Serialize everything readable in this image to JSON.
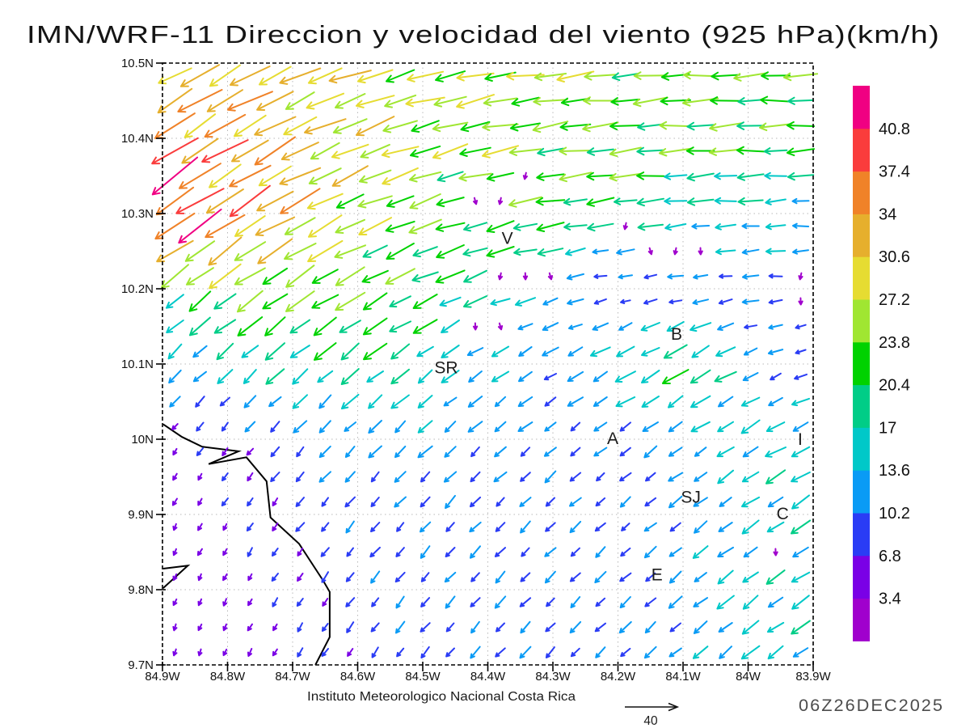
{
  "title": "IMN/WRF-11 Direccion y velocidad del viento (925 hPa)(km/h)",
  "footer": {
    "institute": "Instituto Meteorologico Nacional Costa Rica",
    "ref_value": "40",
    "datetime": "06Z26DEC2025"
  },
  "chart_data": {
    "type": "vector-field",
    "units": "km/h",
    "level": "925 hPa",
    "lon_range": [
      -84.9,
      -83.9
    ],
    "lat_range": [
      9.7,
      10.5
    ],
    "grid_interval_deg": 0.1,
    "x_axis": {
      "ticks": [
        {
          "label": "84.9W",
          "lon": -84.9
        },
        {
          "label": "84.8W",
          "lon": -84.8
        },
        {
          "label": "84.7W",
          "lon": -84.7
        },
        {
          "label": "84.6W",
          "lon": -84.6
        },
        {
          "label": "84.5W",
          "lon": -84.5
        },
        {
          "label": "84.4W",
          "lon": -84.4
        },
        {
          "label": "84.3W",
          "lon": -84.3
        },
        {
          "label": "84.2W",
          "lon": -84.2
        },
        {
          "label": "84.1W",
          "lon": -84.1
        },
        {
          "label": "84W",
          "lon": -84.0
        },
        {
          "label": "83.9W",
          "lon": -83.9
        }
      ]
    },
    "y_axis": {
      "ticks": [
        {
          "label": "9.7N",
          "lat": 9.7
        },
        {
          "label": "9.8N",
          "lat": 9.8
        },
        {
          "label": "9.9N",
          "lat": 9.9
        },
        {
          "label": "10N",
          "lat": 10.0
        },
        {
          "label": "10.1N",
          "lat": 10.1
        },
        {
          "label": "10.2N",
          "lat": 10.2
        },
        {
          "label": "10.3N",
          "lat": 10.3
        },
        {
          "label": "10.4N",
          "lat": 10.4
        },
        {
          "label": "10.5N",
          "lat": 10.5
        }
      ]
    },
    "colorbar": {
      "tick_values": [
        "3.4",
        "6.8",
        "10.2",
        "13.6",
        "17",
        "20.4",
        "23.8",
        "27.2",
        "30.6",
        "34",
        "37.4",
        "40.8"
      ],
      "step_kmh": 3.4,
      "colors_bottom_to_top": [
        "#A000CD",
        "#7A00E6",
        "#2A3CF5",
        "#0A9BF5",
        "#00C8C8",
        "#00CD87",
        "#00D200",
        "#A0E632",
        "#E6DC32",
        "#E6AF2D",
        "#F08228",
        "#FA3C3C",
        "#F00082"
      ]
    },
    "reference_speed_kmh": 40,
    "stations": [
      {
        "label": "V",
        "lon": -84.37,
        "lat": 10.267
      },
      {
        "label": "B",
        "lon": -84.11,
        "lat": 10.14
      },
      {
        "label": "SR",
        "lon": -84.464,
        "lat": 10.095
      },
      {
        "label": "A",
        "lon": -84.208,
        "lat": 10.001
      },
      {
        "label": "I",
        "lon": -83.92,
        "lat": 10.0
      },
      {
        "label": "SJ",
        "lon": -84.088,
        "lat": 9.923
      },
      {
        "label": "C",
        "lon": -83.947,
        "lat": 9.901
      },
      {
        "label": "E",
        "lon": -84.14,
        "lat": 9.82
      }
    ],
    "coastlines_lonlat": [
      [
        [
          -84.899,
          10.02
        ],
        [
          -84.87,
          10.003
        ],
        [
          -84.839,
          9.99
        ],
        [
          -84.783,
          9.984
        ],
        [
          -84.829,
          9.967
        ],
        [
          -84.771,
          9.976
        ],
        [
          -84.74,
          9.944
        ],
        [
          -84.734,
          9.896
        ],
        [
          -84.69,
          9.861
        ],
        [
          -84.653,
          9.812
        ],
        [
          -84.643,
          9.797
        ],
        [
          -84.643,
          9.737
        ],
        [
          -84.665,
          9.7
        ]
      ],
      [
        [
          -84.899,
          9.828
        ],
        [
          -84.861,
          9.832
        ],
        [
          -84.899,
          9.802
        ]
      ]
    ],
    "wind_grid": {
      "dir_convention": "degrees toward which wind blows; 0=E, 90=N, 180=W, 270=S",
      "lons": [
        -84.9,
        -84.8,
        -84.7,
        -84.6,
        -84.5,
        -84.4,
        -84.3,
        -84.2,
        -84.1,
        -84.0,
        -83.9
      ],
      "lats_top_to_bottom": [
        10.5,
        10.4,
        10.3,
        10.2,
        10.1,
        10.0,
        9.9,
        9.8,
        9.7
      ],
      "dir_speed": [
        [
          [
            210,
            32
          ],
          [
            208,
            31
          ],
          [
            204,
            29
          ],
          [
            199,
            28
          ],
          [
            194,
            27
          ],
          [
            190,
            26
          ],
          [
            187,
            25
          ],
          [
            185,
            24
          ],
          [
            184,
            24
          ],
          [
            183,
            23
          ],
          [
            182,
            22
          ]
        ],
        [
          [
            213,
            37
          ],
          [
            211,
            34
          ],
          [
            207,
            31
          ],
          [
            202,
            28
          ],
          [
            197,
            26
          ],
          [
            192,
            25
          ],
          [
            188,
            24
          ],
          [
            186,
            23
          ],
          [
            184,
            23
          ],
          [
            183,
            22
          ],
          [
            182,
            21
          ]
        ],
        [
          [
            215,
            41
          ],
          [
            213,
            36
          ],
          [
            209,
            31
          ],
          [
            204,
            26
          ],
          [
            199,
            23
          ],
          [
            195,
            22
          ],
          [
            190,
            21
          ],
          [
            187,
            19
          ],
          [
            185,
            17
          ],
          [
            184,
            15
          ],
          [
            183,
            13
          ]
        ],
        [
          [
            218,
            20
          ],
          [
            216,
            24
          ],
          [
            213,
            25
          ],
          [
            209,
            23
          ],
          [
            205,
            21
          ],
          [
            200,
            18
          ],
          [
            195,
            12
          ],
          [
            190,
            7
          ],
          [
            187,
            9
          ],
          [
            185,
            11
          ],
          [
            183,
            10
          ]
        ],
        [
          [
            224,
            13
          ],
          [
            222,
            15
          ],
          [
            221,
            17
          ],
          [
            219,
            18
          ],
          [
            217,
            16
          ],
          [
            214,
            13
          ],
          [
            211,
            12
          ],
          [
            208,
            16
          ],
          [
            212,
            22
          ],
          [
            206,
            12
          ],
          [
            196,
            7
          ]
        ],
        [
          [
            236,
            5
          ],
          [
            232,
            7
          ],
          [
            228,
            10
          ],
          [
            226,
            12
          ],
          [
            224,
            12
          ],
          [
            222,
            11
          ],
          [
            220,
            10
          ],
          [
            218,
            10
          ],
          [
            215,
            12
          ],
          [
            211,
            15
          ],
          [
            207,
            17
          ]
        ],
        [
          [
            244,
            5
          ],
          [
            238,
            6
          ],
          [
            232,
            8
          ],
          [
            229,
            9
          ],
          [
            227,
            10
          ],
          [
            225,
            10
          ],
          [
            223,
            10
          ],
          [
            221,
            9
          ],
          [
            218,
            11
          ],
          [
            215,
            14
          ],
          [
            212,
            15
          ]
        ],
        [
          [
            250,
            4
          ],
          [
            243,
            5
          ],
          [
            236,
            7
          ],
          [
            232,
            9
          ],
          [
            229,
            10
          ],
          [
            227,
            10
          ],
          [
            225,
            10
          ],
          [
            223,
            10
          ],
          [
            220,
            12
          ],
          [
            217,
            15
          ],
          [
            214,
            16
          ]
        ],
        [
          [
            252,
            4
          ],
          [
            246,
            5
          ],
          [
            239,
            6
          ],
          [
            235,
            8
          ],
          [
            231,
            9
          ],
          [
            228,
            10
          ],
          [
            226,
            10
          ],
          [
            224,
            10
          ],
          [
            221,
            12
          ],
          [
            218,
            14
          ],
          [
            215,
            15
          ]
        ]
      ]
    },
    "calm_spots_lonlat": [
      [
        -84.18,
        10.29
      ],
      [
        -84.14,
        10.26
      ],
      [
        -84.09,
        10.26
      ],
      [
        -84.06,
        10.26
      ],
      [
        -84.29,
        10.23
      ],
      [
        -84.36,
        10.22
      ],
      [
        -84.4,
        10.15
      ],
      [
        -83.92,
        10.21
      ],
      [
        -83.91,
        10.17
      ],
      [
        -83.95,
        9.84
      ],
      [
        -84.34,
        10.34
      ],
      [
        -84.4,
        10.31
      ]
    ]
  }
}
